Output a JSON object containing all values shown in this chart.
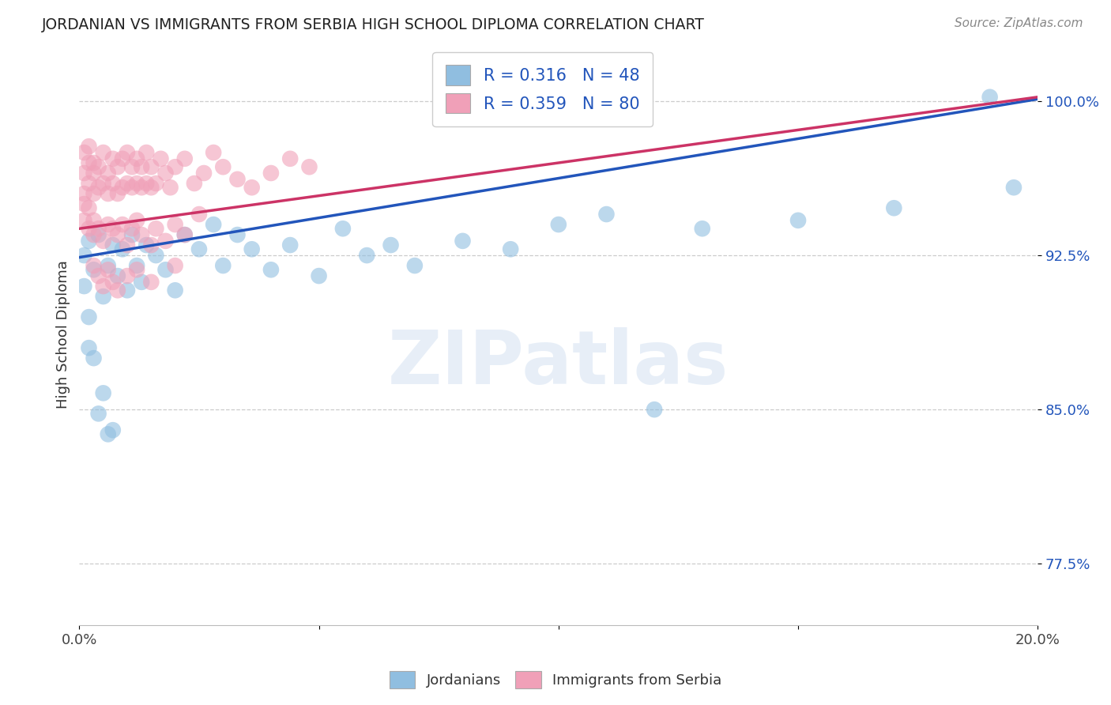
{
  "title": "JORDANIAN VS IMMIGRANTS FROM SERBIA HIGH SCHOOL DIPLOMA CORRELATION CHART",
  "source": "Source: ZipAtlas.com",
  "ylabel": "High School Diploma",
  "xlim": [
    0.0,
    0.2
  ],
  "ylim": [
    0.745,
    1.028
  ],
  "xtick_positions": [
    0.0,
    0.05,
    0.1,
    0.15,
    0.2
  ],
  "xticklabels": [
    "0.0%",
    "",
    "",
    "",
    "20.0%"
  ],
  "ytick_positions": [
    0.775,
    0.85,
    0.925,
    1.0
  ],
  "ytick_labels": [
    "77.5%",
    "85.0%",
    "92.5%",
    "100.0%"
  ],
  "grid_color": "#cccccc",
  "background_color": "#ffffff",
  "blue_color": "#90BEE0",
  "pink_color": "#F0A0B8",
  "blue_line_color": "#2255BB",
  "pink_line_color": "#CC3366",
  "R_blue": 0.316,
  "N_blue": 48,
  "R_pink": 0.359,
  "N_pink": 80,
  "legend_items": [
    "Jordanians",
    "Immigrants from Serbia"
  ],
  "watermark": "ZIPatlas",
  "blue_line_x0": 0.0,
  "blue_line_y0": 0.924,
  "blue_line_x1": 0.2,
  "blue_line_y1": 1.001,
  "pink_line_x0": 0.0,
  "pink_line_y0": 0.938,
  "pink_line_x1": 0.2,
  "pink_line_y1": 1.002,
  "blue_scatter_x": [
    0.001,
    0.001,
    0.002,
    0.002,
    0.003,
    0.004,
    0.005,
    0.006,
    0.007,
    0.008,
    0.009,
    0.01,
    0.011,
    0.012,
    0.013,
    0.014,
    0.016,
    0.018,
    0.02,
    0.022,
    0.025,
    0.028,
    0.03,
    0.033,
    0.036,
    0.04,
    0.044,
    0.05,
    0.055,
    0.06,
    0.065,
    0.07,
    0.08,
    0.09,
    0.1,
    0.11,
    0.13,
    0.15,
    0.17,
    0.19,
    0.002,
    0.003,
    0.004,
    0.005,
    0.006,
    0.007,
    0.195,
    0.12
  ],
  "blue_scatter_y": [
    0.925,
    0.91,
    0.932,
    0.895,
    0.918,
    0.935,
    0.905,
    0.92,
    0.93,
    0.915,
    0.928,
    0.908,
    0.935,
    0.92,
    0.912,
    0.93,
    0.925,
    0.918,
    0.908,
    0.935,
    0.928,
    0.94,
    0.92,
    0.935,
    0.928,
    0.918,
    0.93,
    0.915,
    0.938,
    0.925,
    0.93,
    0.92,
    0.932,
    0.928,
    0.94,
    0.945,
    0.938,
    0.942,
    0.948,
    1.002,
    0.88,
    0.875,
    0.848,
    0.858,
    0.838,
    0.84,
    0.958,
    0.85
  ],
  "pink_scatter_x": [
    0.001,
    0.001,
    0.001,
    0.002,
    0.002,
    0.002,
    0.003,
    0.003,
    0.003,
    0.004,
    0.004,
    0.005,
    0.005,
    0.006,
    0.006,
    0.007,
    0.007,
    0.008,
    0.008,
    0.009,
    0.009,
    0.01,
    0.01,
    0.011,
    0.011,
    0.012,
    0.012,
    0.013,
    0.013,
    0.014,
    0.014,
    0.015,
    0.015,
    0.016,
    0.017,
    0.018,
    0.019,
    0.02,
    0.022,
    0.024,
    0.026,
    0.028,
    0.03,
    0.033,
    0.036,
    0.04,
    0.044,
    0.048,
    0.001,
    0.001,
    0.002,
    0.002,
    0.003,
    0.003,
    0.004,
    0.005,
    0.006,
    0.007,
    0.008,
    0.009,
    0.01,
    0.011,
    0.012,
    0.013,
    0.015,
    0.016,
    0.018,
    0.02,
    0.022,
    0.025,
    0.003,
    0.004,
    0.005,
    0.006,
    0.007,
    0.008,
    0.01,
    0.012,
    0.015,
    0.02
  ],
  "pink_scatter_y": [
    0.975,
    0.965,
    0.955,
    0.97,
    0.96,
    0.978,
    0.965,
    0.955,
    0.97,
    0.968,
    0.958,
    0.96,
    0.975,
    0.955,
    0.965,
    0.96,
    0.972,
    0.955,
    0.968,
    0.958,
    0.972,
    0.96,
    0.975,
    0.958,
    0.968,
    0.96,
    0.972,
    0.958,
    0.968,
    0.975,
    0.96,
    0.958,
    0.968,
    0.96,
    0.972,
    0.965,
    0.958,
    0.968,
    0.972,
    0.96,
    0.965,
    0.975,
    0.968,
    0.962,
    0.958,
    0.965,
    0.972,
    0.968,
    0.95,
    0.942,
    0.948,
    0.938,
    0.942,
    0.935,
    0.938,
    0.932,
    0.94,
    0.938,
    0.935,
    0.94,
    0.93,
    0.938,
    0.942,
    0.935,
    0.93,
    0.938,
    0.932,
    0.94,
    0.935,
    0.945,
    0.92,
    0.915,
    0.91,
    0.918,
    0.912,
    0.908,
    0.915,
    0.918,
    0.912,
    0.92
  ]
}
